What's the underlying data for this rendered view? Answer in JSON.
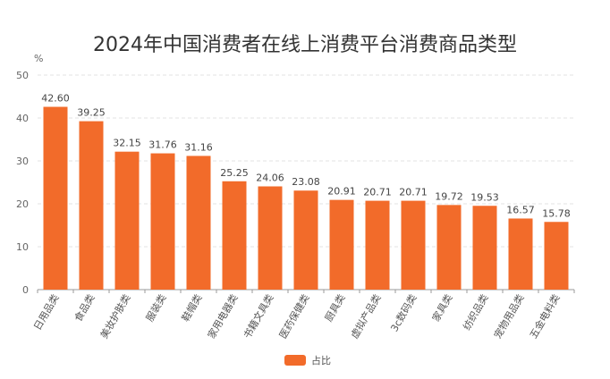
{
  "chart_data": {
    "type": "bar",
    "title": "2024年中国消费者在线上消费平台消费商品类型",
    "ylabel": "%",
    "xlabel": "",
    "ylim": [
      0,
      50
    ],
    "yticks": [
      0,
      10,
      20,
      30,
      40,
      50
    ],
    "grid": true,
    "legend_position": "bottom",
    "categories": [
      "日用品类",
      "食品类",
      "美妆护肤类",
      "服装类",
      "鞋帽类",
      "家用电器类",
      "书籍文具类",
      "医药保健类",
      "厨具类",
      "虚拟产品类",
      "3c数码类",
      "家具类",
      "纺织品类",
      "宠物用品类",
      "五金电料类"
    ],
    "series": [
      {
        "name": "占比",
        "values": [
          42.6,
          39.25,
          32.15,
          31.76,
          31.16,
          25.25,
          24.06,
          23.08,
          20.91,
          20.71,
          20.71,
          19.72,
          19.53,
          16.57,
          15.78
        ],
        "labels": [
          "42.60",
          "39.25",
          "32.15",
          "31.76",
          "31.16",
          "25.25",
          "24.06",
          "23.08",
          "20.91",
          "20.71",
          "20.71",
          "19.72",
          "19.53",
          "16.57",
          "15.78"
        ]
      }
    ],
    "colors": {
      "bar": "#f26b2a",
      "grid": "#e3e3e3",
      "axis": "#9a9a9a"
    }
  }
}
